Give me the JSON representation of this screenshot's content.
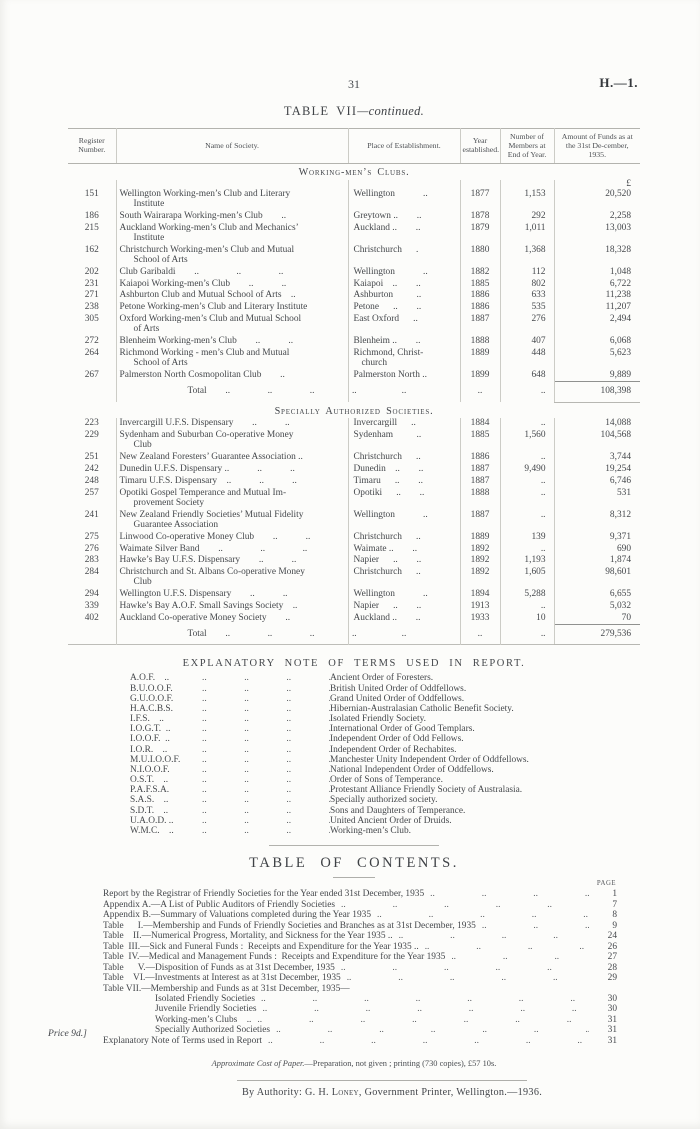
{
  "header": {
    "page_number": "31",
    "doc_ref": "H.—1.",
    "table_title": "TABLE VII",
    "table_title_suffix": "—continued."
  },
  "table": {
    "col_headers": [
      "Register Number.",
      "Name of Society.",
      "Place of Establishment.",
      "Year established.",
      "Number of Members at End of Year.",
      "Amount of Funds as at the 31st De-cember, 1935."
    ],
    "currency_symbol": "£",
    "sections": [
      {
        "title": "Working-men’s Clubs.",
        "show_currency": true,
        "rows": [
          {
            "reg": "151",
            "name": "Wellington Working-men’s Club and Literary\nInstitute",
            "place": "Wellington   ..",
            "year": "1877",
            "members": "1,153",
            "funds": "20,520"
          },
          {
            "reg": "186",
            "name": "South Wairarapa Working-men’s Club  ..",
            "place": "Greytown ..  ..",
            "year": "1878",
            "members": "292",
            "funds": "2,258"
          },
          {
            "reg": "215",
            "name": "Auckland Working-men’s Club and Mechanics’\nInstitute",
            "place": "Auckland ..  ..",
            "year": "1879",
            "members": "1,011",
            "funds": "13,003"
          },
          {
            "reg": "162",
            "name": "Christchurch Working-men’s Club and Mutual\nSchool of Arts",
            "place": "Christchurch  .",
            "year": "1880",
            "members": "1,368",
            "funds": "18,328"
          },
          {
            "reg": "202",
            "name": "Club Garibaldi  ..    ..    ..",
            "place": "Wellington   ..",
            "year": "1882",
            "members": "112",
            "funds": "1,048"
          },
          {
            "reg": "231",
            "name": "Kaiapoi Working-men’s Club  ..   ..",
            "place": "Kaiapoi ..  ..",
            "year": "1885",
            "members": "802",
            "funds": "6,722"
          },
          {
            "reg": "271",
            "name": "Ashburton Club and Mutual School of Arts ..",
            "place": "Ashburton   ..",
            "year": "1886",
            "members": "633",
            "funds": "11,238"
          },
          {
            "reg": "238",
            "name": "Petone Working-men’s Club and Literary Institute",
            "place": "Petone  ..  ..",
            "year": "1886",
            "members": "535",
            "funds": "11,207"
          },
          {
            "reg": "305",
            "name": "Oxford Working-men’s Club and Mutual School\nof Arts",
            "place": "East Oxford  ..",
            "year": "1887",
            "members": "276",
            "funds": "2,494"
          },
          {
            "reg": "272",
            "name": "Blenheim Working-men’s Club  ..   ..",
            "place": "Blenheim ..  ..",
            "year": "1888",
            "members": "407",
            "funds": "6,068"
          },
          {
            "reg": "264",
            "name": "Richmond Working - men’s Club and Mutual\nSchool of Arts",
            "place": "Richmond, Christ-\nchurch",
            "year": "1889",
            "members": "448",
            "funds": "5,623"
          },
          {
            "reg": "267",
            "name": "Palmerston North Cosmopolitan Club  ..",
            "place": "Palmerston North ..",
            "year": "1899",
            "members": "648",
            "funds": "9,889"
          }
        ],
        "total": {
          "label": "Total",
          "leader": "  ..    ..    ..    ..",
          "place": "..",
          "year": "..",
          "members": "..",
          "funds": "108,398"
        }
      },
      {
        "title": "Specially Authorized Societies.",
        "show_currency": false,
        "rows": [
          {
            "reg": "223",
            "name": "Invercargill U.F.S. Dispensary  ..   ..",
            "place": "Invercargill  ..",
            "year": "1884",
            "members": "..",
            "funds": "14,088"
          },
          {
            "reg": "229",
            "name": "Sydenham and Suburban Co-operative Money\nClub",
            "place": "Sydenham   ..",
            "year": "1885",
            "members": "1,560",
            "funds": "104,568"
          },
          {
            "reg": "251",
            "name": "New Zealand Foresters’ Guarantee Association ..",
            "place": "Christchurch  ..",
            "year": "1886",
            "members": "..",
            "funds": "3,744"
          },
          {
            "reg": "242",
            "name": "Dunedin U.F.S. Dispensary ..   ..   ..",
            "place": "Dunedin ..  ..",
            "year": "1887",
            "members": "9,490",
            "funds": "19,254"
          },
          {
            "reg": "248",
            "name": "Timaru U.F.S. Dispensary ..   ..   ..",
            "place": "Timaru  ..  ..",
            "year": "1887",
            "members": "..",
            "funds": "6,746"
          },
          {
            "reg": "257",
            "name": "Opotiki Gospel Temperance and Mutual Im-\nprovement Society",
            "place": "Opotiki  ..  ..",
            "year": "1888",
            "members": "..",
            "funds": "531"
          },
          {
            "reg": "241",
            "name": "New Zealand Friendly Societies’ Mutual Fidelity\nGuarantee Association",
            "place": "Wellington   ..",
            "year": "1887",
            "members": "..",
            "funds": "8,312"
          },
          {
            "reg": "275",
            "name": "Linwood Co-operative Money Club  ..   ..",
            "place": "Christchurch  ..",
            "year": "1889",
            "members": "139",
            "funds": "9,371"
          },
          {
            "reg": "276",
            "name": "Waimate Silver Band  ..    ..    ..",
            "place": "Waimate ..  ..",
            "year": "1892",
            "members": "..",
            "funds": "690"
          },
          {
            "reg": "283",
            "name": "Hawke’s Bay U.F.S. Dispensary  ..   ..",
            "place": "Napier  ..  ..",
            "year": "1892",
            "members": "1,193",
            "funds": "1,874"
          },
          {
            "reg": "284",
            "name": "Christchurch and St. Albans Co-operative Money\nClub",
            "place": "Christchurch  ..",
            "year": "1892",
            "members": "1,605",
            "funds": "98,601"
          },
          {
            "reg": "294",
            "name": "Wellington U.F.S. Dispensary  ..   ..",
            "place": "Wellington   ..",
            "year": "1894",
            "members": "5,288",
            "funds": "6,655"
          },
          {
            "reg": "339",
            "name": "Hawke’s Bay A.O.F. Small Savings Society ..",
            "place": "Napier  ..  ..",
            "year": "1913",
            "members": "..",
            "funds": "5,032"
          },
          {
            "reg": "402",
            "name": "Auckland Co-operative Money Society  ..",
            "place": "Auckland ..  ..",
            "year": "1933",
            "members": "10",
            "funds": "70"
          }
        ],
        "total": {
          "label": "Total",
          "leader": "  ..    ..    ..    ..",
          "place": "..",
          "year": "..",
          "members": "..",
          "funds": "279,536"
        }
      }
    ]
  },
  "explanatory": {
    "title": "EXPLANATORY NOTE OF TERMS USED IN REPORT.",
    "leader": "..    ..    ..    ..",
    "terms": [
      {
        "abbr": "A.O.F.  ..",
        "meaning": "Ancient Order of Foresters."
      },
      {
        "abbr": "B.U.O.O.F.",
        "meaning": "British United Order of Oddfellows."
      },
      {
        "abbr": "G.U.O.O.F.",
        "meaning": "Grand United Order of Oddfellows."
      },
      {
        "abbr": "H.A.C.B.S.",
        "meaning": "Hibernian-Australasian Catholic Benefit Society."
      },
      {
        "abbr": "I.F.S.  ..",
        "meaning": "Isolated Friendly Society."
      },
      {
        "abbr": "I.O.G.T. ..",
        "meaning": "International Order of Good Templars."
      },
      {
        "abbr": "I.O.O.F. ..",
        "meaning": "Independent Order of Odd Fellows."
      },
      {
        "abbr": "I.O.R.  ..",
        "meaning": "Independent Order of Rechabites."
      },
      {
        "abbr": "M.U.I.O.O.F.",
        "meaning": "Manchester Unity Independent Order of Oddfellows."
      },
      {
        "abbr": "N.I.O.O.F.",
        "meaning": "National Independent Order of Oddfellows."
      },
      {
        "abbr": "O.S.T.  ..",
        "meaning": "Order of Sons of Temperance."
      },
      {
        "abbr": "P.A.F.S.A.",
        "meaning": "Protestant Alliance Friendly Society of Australasia."
      },
      {
        "abbr": "S.A.S.  ..",
        "meaning": "Specially authorized society."
      },
      {
        "abbr": "S.D.T.  ..",
        "meaning": "Sons and Daughters of Temperance."
      },
      {
        "abbr": "U.A.O.D. ..",
        "meaning": "United Ancient Order of Druids."
      },
      {
        "abbr": "W.M.C.  ..",
        "meaning": "Working-men’s Club."
      }
    ]
  },
  "contents": {
    "title": "TABLE OF CONTENTS.",
    "page_label": "PAGE",
    "leader": "..     ..     ..     ..     ..     ..     ..     ..",
    "items": [
      {
        "label": "Report by the Registrar of Friendly Societies for the Year ended 31st December, 1935",
        "page": "1",
        "indent": 0
      },
      {
        "label": "Appendix A.—A List of Public Auditors of Friendly Societies",
        "page": "7",
        "indent": 0
      },
      {
        "label": "Appendix B.—Summary of Valuations completed during the Year 1935",
        "page": "8",
        "indent": 0
      },
      {
        "label": "Table   I.—Membership and Funds of Friendly Societies and Branches as at 31st December, 1935",
        "page": "9",
        "indent": 0
      },
      {
        "label": "Table  II.—Numerical Progress, Mortality, and Sickness for the Year 1935 ..",
        "page": "24",
        "indent": 0
      },
      {
        "label": "Table III.—Sick and Funeral Funds :  Receipts and Expenditure for the Year 1935 ..",
        "page": "26",
        "indent": 0
      },
      {
        "label": "Table IV.—Medical and Management Funds :  Receipts and Expenditure for the Year 1935",
        "page": "27",
        "indent": 0
      },
      {
        "label": "Table   V.—Disposition of Funds as at 31st December, 1935",
        "page": "28",
        "indent": 0
      },
      {
        "label": "Table  VI.—Investments at Interest as at 31st December, 1935",
        "page": "29",
        "indent": 0
      },
      {
        "label": "Table VII.—Membership and Funds as at 31st December, 1935—",
        "page": "",
        "indent": 0
      },
      {
        "label": "Isolated Friendly Societies",
        "page": "30",
        "indent": 1
      },
      {
        "label": "Juvenile Friendly Societies",
        "page": "30",
        "indent": 1
      },
      {
        "label": "Working-men’s Clubs  ..",
        "page": "31",
        "indent": 1
      },
      {
        "label": "Specially Authorized Societies",
        "page": "31",
        "indent": 1
      },
      {
        "label": "Explanatory Note of Terms used in Report",
        "page": "31",
        "indent": 0
      }
    ]
  },
  "footer": {
    "cost_note_italic": "Approximate Cost of Paper.",
    "cost_note_rest": "—Preparation, not given ;  printing (730 copies), £57 10s.",
    "authority_prefix": "By Authority: G. H. ",
    "authority_name": "Loney",
    "authority_suffix": ", Government Printer, Wellington.—1936.",
    "price": "Price 9d.]"
  }
}
